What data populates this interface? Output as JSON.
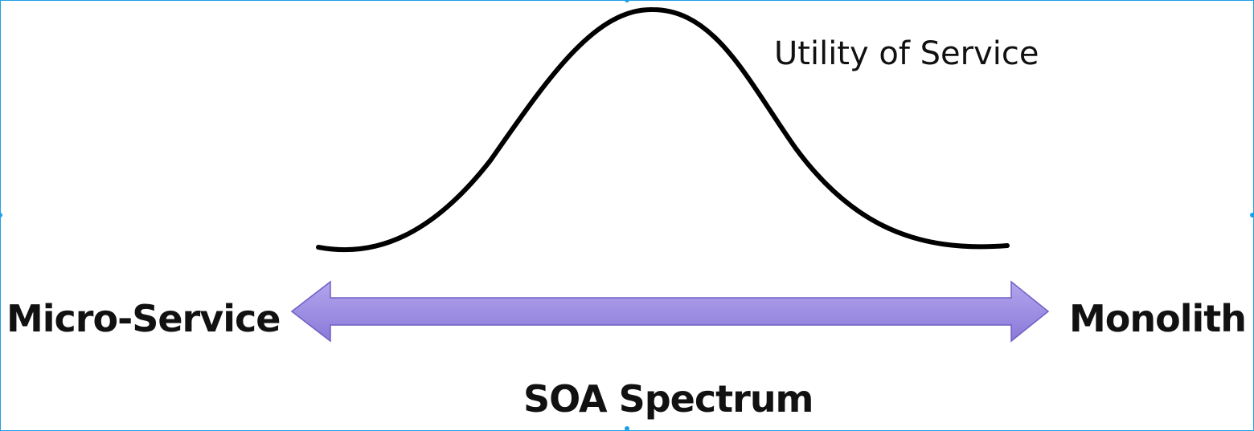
{
  "diagram": {
    "curve_label": "Utility of Service",
    "left_label": "Micro-Service",
    "right_label": "Monolith",
    "axis_label": "SOA Spectrum"
  },
  "colors": {
    "arrow_fill_top": "#b3a5ee",
    "arrow_fill_bottom": "#8a79d8",
    "arrow_stroke": "#6e60c4",
    "curve_stroke": "#000000",
    "selection_border": "#1ea0e6"
  }
}
